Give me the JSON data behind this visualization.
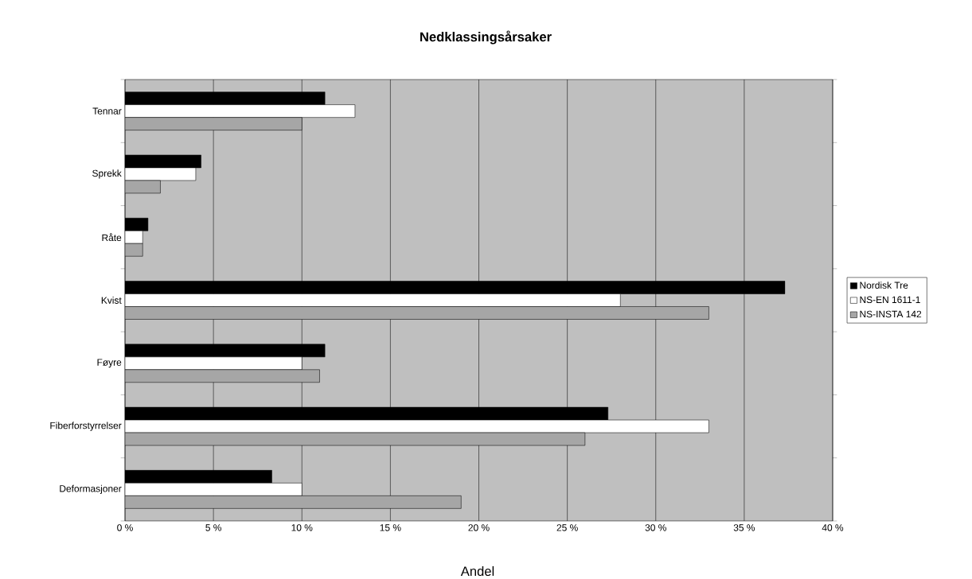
{
  "chart_data": {
    "type": "bar",
    "orientation": "horizontal",
    "title": "Nedklassingsårsaker",
    "xlabel": "Andel",
    "categories": [
      "Tennar",
      "Sprekk",
      "Råte",
      "Kvist",
      "Føyre",
      "Fiberforstyrrelser",
      "Deformasjoner"
    ],
    "series": [
      {
        "name": "Nordisk Tre",
        "color": "#000000",
        "values": [
          11.3,
          4.3,
          1.3,
          37.3,
          11.3,
          27.3,
          8.3
        ]
      },
      {
        "name": "NS-EN 1611-1",
        "color": "#ffffff",
        "values": [
          13.0,
          4.0,
          1.0,
          28.0,
          10.0,
          33.0,
          10.0
        ]
      },
      {
        "name": "NS-INSTA 142",
        "color": "#a6a6a6",
        "values": [
          10.0,
          2.0,
          1.0,
          33.0,
          11.0,
          26.0,
          19.0
        ]
      }
    ],
    "xlim": [
      0,
      40
    ],
    "xticks": [
      {
        "value": 0,
        "label": "0 %"
      },
      {
        "value": 5,
        "label": "5 %"
      },
      {
        "value": 10,
        "label": "10 %"
      },
      {
        "value": 15,
        "label": "15 %"
      },
      {
        "value": 20,
        "label": "20 %"
      },
      {
        "value": 25,
        "label": "25 %"
      },
      {
        "value": 30,
        "label": "30 %"
      },
      {
        "value": 35,
        "label": "35 %"
      },
      {
        "value": 40,
        "label": "40 %"
      }
    ],
    "grid": "x",
    "legend": "right"
  }
}
